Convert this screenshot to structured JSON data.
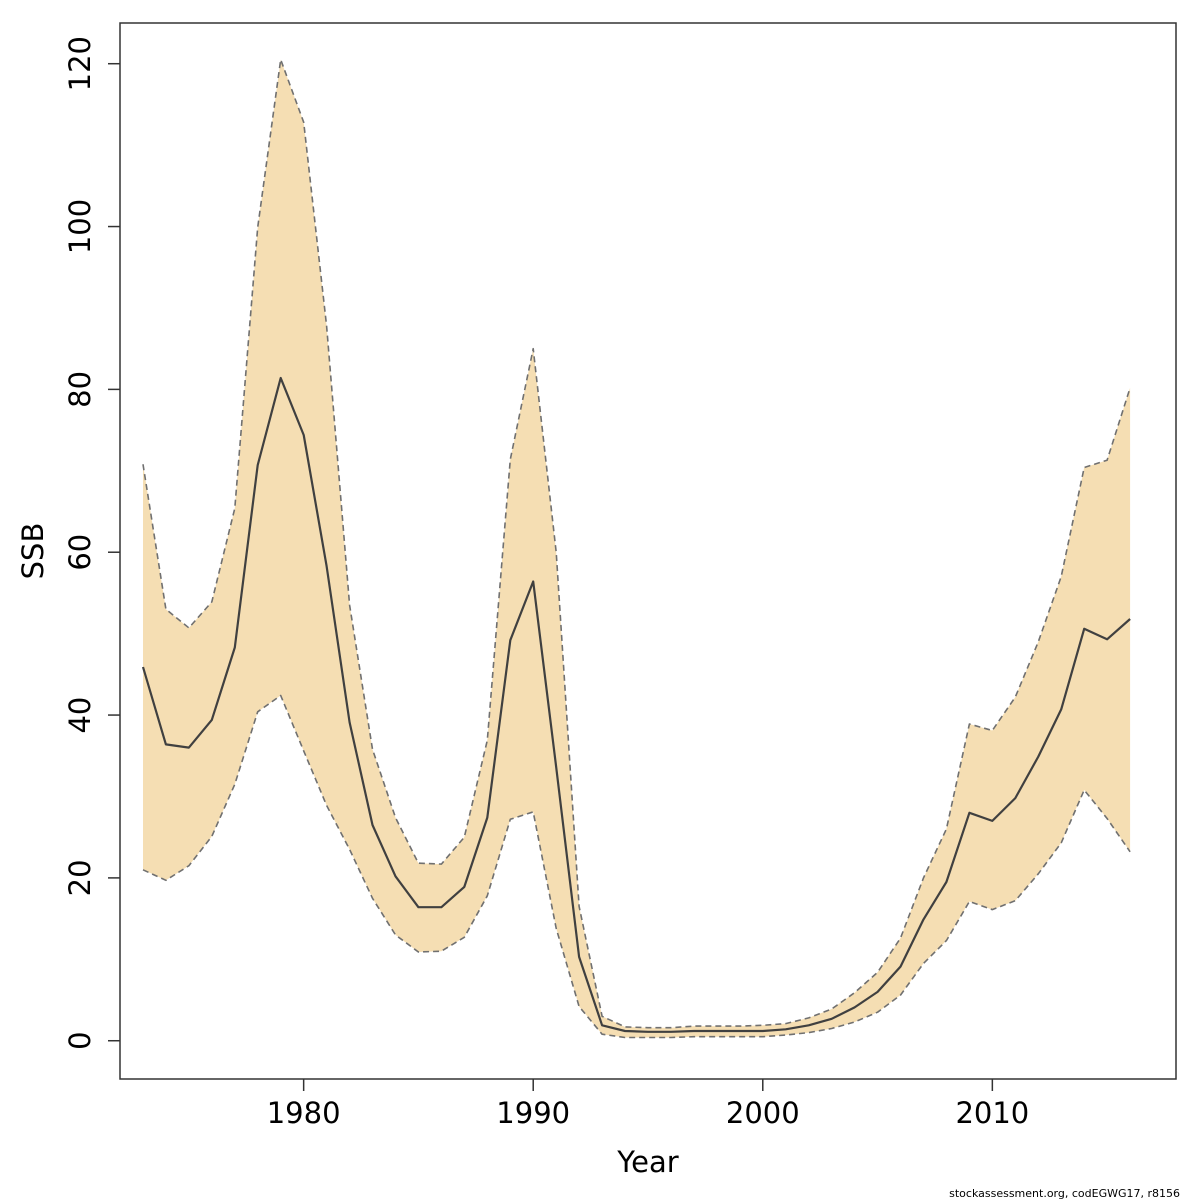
{
  "chart_data": {
    "type": "area",
    "title": "",
    "xlabel": "Year",
    "ylabel": "SSB",
    "xlim": [
      1972,
      2018
    ],
    "ylim": [
      -4.7,
      125
    ],
    "x_ticks": [
      "1980",
      "1990",
      "2000",
      "2010"
    ],
    "y_ticks": [
      "0",
      "20",
      "40",
      "60",
      "80",
      "100",
      "120"
    ],
    "grid": false,
    "legend": "none",
    "x": [
      1973,
      1974,
      1975,
      1976,
      1977,
      1978,
      1979,
      1980,
      1981,
      1982,
      1983,
      1984,
      1985,
      1986,
      1987,
      1988,
      1989,
      1990,
      1991,
      1992,
      1993,
      1994,
      1995,
      1996,
      1997,
      1998,
      1999,
      2000,
      2001,
      2002,
      2003,
      2004,
      2005,
      2006,
      2007,
      2008,
      2009,
      2010,
      2011,
      2012,
      2013,
      2014,
      2015,
      2016
    ],
    "series": [
      {
        "role": "estimate",
        "values": [
          45.9,
          36.4,
          36.0,
          39.4,
          48.3,
          70.7,
          81.4,
          74.4,
          58.3,
          39.1,
          26.5,
          20.2,
          16.4,
          16.4,
          18.9,
          27.4,
          49.2,
          56.4,
          33.6,
          10.3,
          1.9,
          1.2,
          1.1,
          1.1,
          1.2,
          1.2,
          1.2,
          1.2,
          1.4,
          1.9,
          2.7,
          4.1,
          6.0,
          9.1,
          14.9,
          19.5,
          28.0,
          27.0,
          29.8,
          34.9,
          40.7,
          50.6,
          49.3,
          51.8
        ]
      },
      {
        "role": "upper",
        "values": [
          70.8,
          53.0,
          50.7,
          53.9,
          65.4,
          99.9,
          120.5,
          112.8,
          87.8,
          53.5,
          35.8,
          27.4,
          21.8,
          21.7,
          25.0,
          36.9,
          71.4,
          85.0,
          60.0,
          16.5,
          3.0,
          1.7,
          1.6,
          1.6,
          1.8,
          1.8,
          1.8,
          1.9,
          2.1,
          2.8,
          3.9,
          5.9,
          8.4,
          12.6,
          20.0,
          26.0,
          38.9,
          38.1,
          42.2,
          49.0,
          57.0,
          70.4,
          71.3,
          80.2
        ]
      },
      {
        "role": "lower",
        "values": [
          21.0,
          19.7,
          21.5,
          25.1,
          31.5,
          40.4,
          42.4,
          35.6,
          28.9,
          23.5,
          17.5,
          13.0,
          10.9,
          11.0,
          12.7,
          17.8,
          27.2,
          28.1,
          13.8,
          4.2,
          0.8,
          0.4,
          0.4,
          0.4,
          0.5,
          0.5,
          0.5,
          0.5,
          0.7,
          1.0,
          1.5,
          2.3,
          3.5,
          5.6,
          9.5,
          12.3,
          17.1,
          16.1,
          17.2,
          20.5,
          24.3,
          30.8,
          27.3,
          23.2
        ]
      }
    ],
    "colors": {
      "band": "#f5deb3",
      "estimate": "#404040",
      "bounds": "#707070",
      "axes": "#333333"
    },
    "footnote": "stockassessment.org, codEGWG17, r8156"
  }
}
